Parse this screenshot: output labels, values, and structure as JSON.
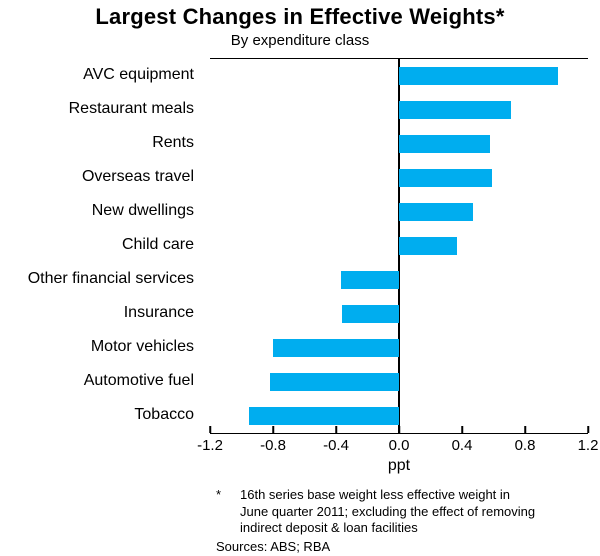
{
  "title": "Largest Changes in Effective Weights*",
  "subtitle": "By expenditure class",
  "footnote": {
    "marker": "*",
    "lines": [
      "16th series base weight less effective weight in",
      "June quarter 2011; excluding the effect of removing",
      "indirect deposit & loan facilities"
    ]
  },
  "sources": "Sources: ABS; RBA",
  "chart_data": {
    "type": "bar",
    "orientation": "horizontal",
    "title": "Largest Changes in Effective Weights*",
    "subtitle": "By expenditure class",
    "categories": [
      "AVC equipment",
      "Restaurant meals",
      "Rents",
      "Overseas travel",
      "New dwellings",
      "Child care",
      "Other financial services",
      "Insurance",
      "Motor vehicles",
      "Automotive fuel",
      "Tobacco"
    ],
    "values": [
      1.01,
      0.71,
      0.58,
      0.59,
      0.47,
      0.37,
      -0.37,
      -0.36,
      -0.8,
      -0.82,
      -0.95
    ],
    "xlabel": "ppt",
    "xlim": [
      -1.2,
      1.2
    ],
    "xticks": [
      -1.2,
      -0.8,
      -0.4,
      0,
      0.4,
      0.8,
      1.2
    ],
    "xtick_labels": [
      "-1.2",
      "-0.8",
      "-0.4",
      "0.0",
      "0.4",
      "0.8",
      "1.2"
    ],
    "bar_color": "#00ADEF",
    "axis_color": "#000000",
    "grid": "off",
    "zero_line": true,
    "legend": "none"
  }
}
